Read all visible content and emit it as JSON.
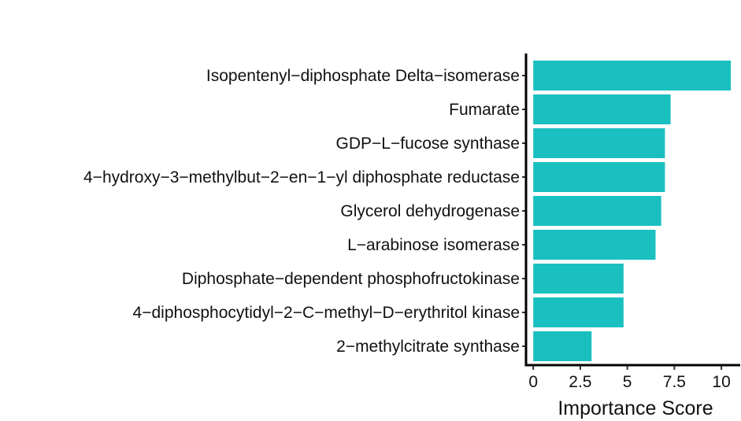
{
  "chart_data": {
    "type": "bar",
    "orientation": "horizontal",
    "categories": [
      "Isopentenyl−diphosphate Delta−isomerase",
      "Fumarate",
      "GDP−L−fucose synthase",
      "4−hydroxy−3−methylbut−2−en−1−yl diphosphate reductase",
      "Glycerol dehydrogenase",
      "L−arabinose isomerase",
      "Diphosphate−dependent phosphofructokinase",
      "4−diphosphocytidyl−2−C−methyl−D−erythritol kinase",
      "2−methylcitrate synthase"
    ],
    "values": [
      10.5,
      7.3,
      7.0,
      7.0,
      6.8,
      6.5,
      4.8,
      4.8,
      3.1
    ],
    "xlabel": "Importance Score",
    "ylabel": "",
    "xlim": [
      -0.3,
      11.0
    ],
    "xticks": [
      0,
      2.5,
      5,
      7.5,
      10
    ],
    "xtick_labels": [
      "0",
      "2.5",
      "5",
      "7.5",
      "10"
    ],
    "bar_color": "#1ABFC0",
    "grid": false,
    "legend": "none"
  }
}
